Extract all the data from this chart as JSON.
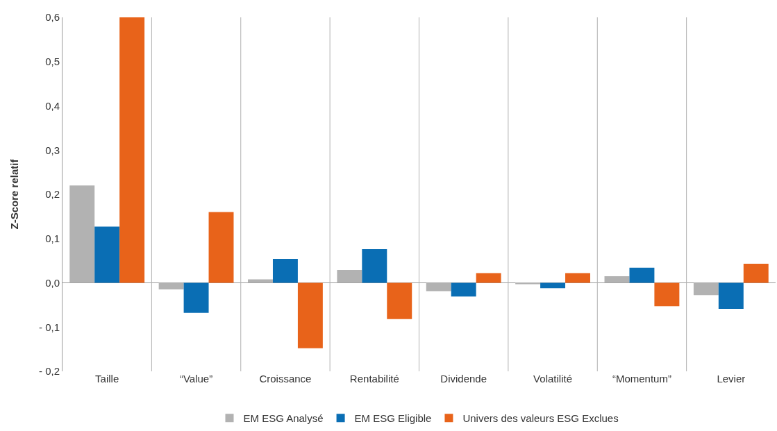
{
  "chart_data": {
    "type": "bar",
    "ylabel": "Z-Score relatif",
    "categories": [
      "Taille",
      "“Value”",
      "Croissance",
      "Rentabilité",
      "Dividende",
      "Volatilité",
      "“Momentum”",
      "Levier"
    ],
    "series": [
      {
        "name": "EM ESG Analysé",
        "color": "#b2b2b2",
        "values": [
          0.22,
          -0.015,
          0.008,
          0.029,
          -0.019,
          -0.003,
          0.015,
          -0.028
        ]
      },
      {
        "name": "EM ESG Eligible",
        "color": "#0a6eb4",
        "values": [
          0.127,
          -0.068,
          0.054,
          0.076,
          -0.031,
          -0.012,
          0.034,
          -0.059
        ]
      },
      {
        "name": "Univers des valeurs ESG Exclues",
        "color": "#e8631a",
        "values": [
          0.6,
          0.16,
          -0.148,
          -0.082,
          0.022,
          0.022,
          -0.053,
          0.043
        ]
      }
    ],
    "ylim": [
      -0.2,
      0.6
    ],
    "yticks": [
      {
        "value": -0.2,
        "label": "- 0,2"
      },
      {
        "value": -0.1,
        "label": "- 0,1"
      },
      {
        "value": 0,
        "label": "0,0"
      },
      {
        "value": 0.1,
        "label": "0,1"
      },
      {
        "value": 0.2,
        "label": "0,2"
      },
      {
        "value": 0.3,
        "label": "0,3"
      },
      {
        "value": 0.4,
        "label": "0,4"
      },
      {
        "value": 0.5,
        "label": "0,5"
      },
      {
        "value": 0.6,
        "label": "0,6"
      }
    ],
    "grid": "x",
    "legend": "bottom"
  }
}
